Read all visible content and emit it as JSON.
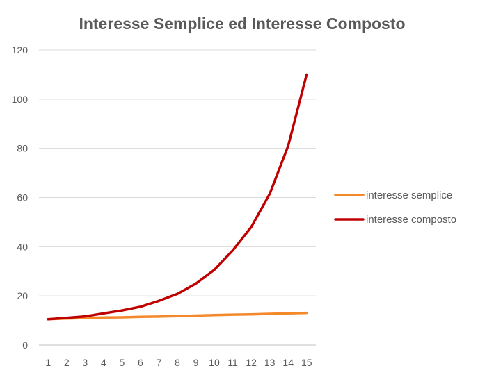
{
  "chart_data": {
    "type": "line",
    "title": "Interesse Semplice ed Interesse Composto",
    "xlabel": "",
    "ylabel": "",
    "categories": [
      "1",
      "2",
      "3",
      "4",
      "5",
      "6",
      "7",
      "8",
      "9",
      "10",
      "11",
      "12",
      "13",
      "14",
      "15"
    ],
    "ylim": [
      0,
      120
    ],
    "y_ticks": [
      "0",
      "20",
      "40",
      "60",
      "80",
      "100",
      "120"
    ],
    "grid": true,
    "legend_position": "right",
    "series": [
      {
        "name": "interesse semplice",
        "color": "#f4892c",
        "values": [
          10.5,
          10.8,
          11.0,
          11.2,
          11.3,
          11.5,
          11.6,
          11.8,
          12.0,
          12.2,
          12.4,
          12.5,
          12.7,
          12.9,
          13.1
        ]
      },
      {
        "name": "interesse composto",
        "color": "#c00000",
        "values": [
          10.5,
          11.1,
          11.7,
          12.9,
          14.1,
          15.6,
          18.0,
          20.8,
          25.0,
          30.6,
          38.5,
          48.0,
          61.5,
          81.0,
          110.0
        ]
      }
    ]
  }
}
